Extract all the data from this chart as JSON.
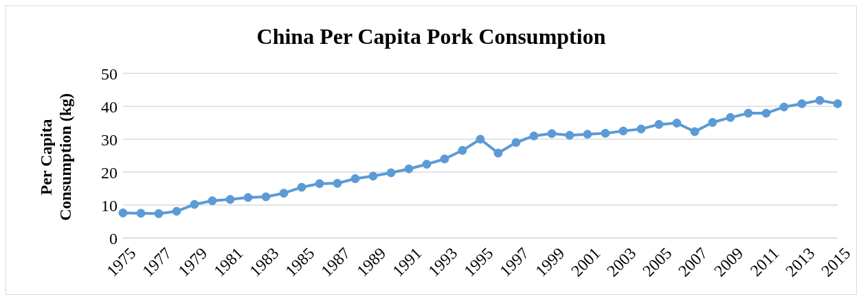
{
  "chart_data": {
    "type": "line",
    "title": "China Per Capita Pork Consumption",
    "ylabel": "Per Capita Consumption (kg)",
    "categories": [
      "1975",
      null,
      "1977",
      null,
      "1979",
      null,
      "1981",
      null,
      "1983",
      null,
      "1985",
      null,
      "1987",
      null,
      "1989",
      null,
      "1991",
      null,
      "1993",
      null,
      "1995",
      null,
      "1997",
      null,
      "1999",
      null,
      "2001",
      null,
      "2003",
      null,
      "2005",
      null,
      "2007",
      null,
      "2009",
      null,
      "2011",
      null,
      "2013",
      null,
      "2015"
    ],
    "series": [
      {
        "color": "#5b9bd5",
        "values": [
          7.6,
          7.5,
          7.4,
          8.1,
          10.2,
          11.3,
          11.7,
          12.3,
          12.5,
          13.6,
          15.4,
          16.5,
          16.6,
          18.0,
          18.8,
          19.8,
          21.0,
          22.4,
          24.0,
          26.6,
          30.0,
          25.8,
          29.0,
          31.0,
          31.7,
          31.2,
          31.5,
          31.8,
          32.5,
          33.1,
          34.5,
          34.9,
          32.3,
          35.1,
          36.6,
          37.9,
          37.9,
          39.8,
          40.8,
          41.8,
          40.8
        ]
      }
    ],
    "ylim": [
      0,
      50
    ],
    "yticks": [
      0,
      10,
      20,
      30,
      40,
      50
    ],
    "grid": "y",
    "marker": "circle",
    "line_style": "solid",
    "legend": false
  }
}
